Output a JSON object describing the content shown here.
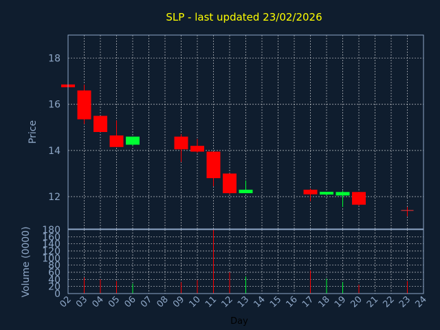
{
  "chart_data": {
    "type": "candlestick",
    "title": "SLP - last updated 23/02/2026",
    "ylabel": "Price",
    "volume_label": "Volume (0000)",
    "xlabel": "Day",
    "x_ticks": [
      "02",
      "03",
      "04",
      "05",
      "06",
      "07",
      "08",
      "09",
      "10",
      "11",
      "12",
      "13",
      "14",
      "15",
      "16",
      "17",
      "18",
      "19",
      "20",
      "21",
      "22",
      "23",
      "24"
    ],
    "price_ylim": [
      10.6,
      19.0
    ],
    "price_ticks": [
      12,
      14,
      16,
      18
    ],
    "volume_ylim": [
      0,
      180
    ],
    "volume_ticks": [
      0,
      20,
      40,
      60,
      80,
      100,
      120,
      140,
      160,
      180
    ],
    "colors": {
      "up": "#00ff33",
      "down": "#ff0000",
      "neutral": "#ff3333"
    },
    "candles": [
      {
        "day": "02",
        "open": 16.85,
        "high": 16.85,
        "low": 16.75,
        "close": 16.75,
        "volume": 0
      },
      {
        "day": "03",
        "open": 16.6,
        "high": 16.85,
        "low": 15.15,
        "close": 15.35,
        "volume": 45
      },
      {
        "day": "04",
        "open": 15.5,
        "high": 15.5,
        "low": 14.8,
        "close": 14.8,
        "volume": 40
      },
      {
        "day": "05",
        "open": 14.65,
        "high": 15.3,
        "low": 14.15,
        "close": 14.15,
        "volume": 35
      },
      {
        "day": "06",
        "open": 14.25,
        "high": 14.6,
        "low": 14.2,
        "close": 14.6,
        "volume": 28
      },
      {
        "day": "09",
        "open": 14.6,
        "high": 14.7,
        "low": 13.5,
        "close": 14.05,
        "volume": 32
      },
      {
        "day": "10",
        "open": 14.2,
        "high": 14.5,
        "low": 13.9,
        "close": 13.95,
        "volume": 38
      },
      {
        "day": "11",
        "open": 13.95,
        "high": 13.95,
        "low": 12.45,
        "close": 12.8,
        "volume": 180
      },
      {
        "day": "12",
        "open": 13.0,
        "high": 13.0,
        "low": 12.1,
        "close": 12.15,
        "volume": 60
      },
      {
        "day": "13",
        "open": 12.15,
        "high": 12.7,
        "low": 12.15,
        "close": 12.3,
        "volume": 48
      },
      {
        "day": "17",
        "open": 12.3,
        "high": 12.35,
        "low": 11.8,
        "close": 12.1,
        "volume": 65
      },
      {
        "day": "18",
        "open": 12.1,
        "high": 12.2,
        "low": 12.05,
        "close": 12.2,
        "volume": 42
      },
      {
        "day": "19",
        "open": 12.05,
        "high": 12.25,
        "low": 11.55,
        "close": 12.2,
        "volume": 32
      },
      {
        "day": "20",
        "open": 12.2,
        "high": 12.2,
        "low": 11.6,
        "close": 11.65,
        "volume": 25
      },
      {
        "day": "23",
        "open": 11.4,
        "high": 11.55,
        "low": 11.15,
        "close": 11.4,
        "volume": 35
      }
    ]
  }
}
